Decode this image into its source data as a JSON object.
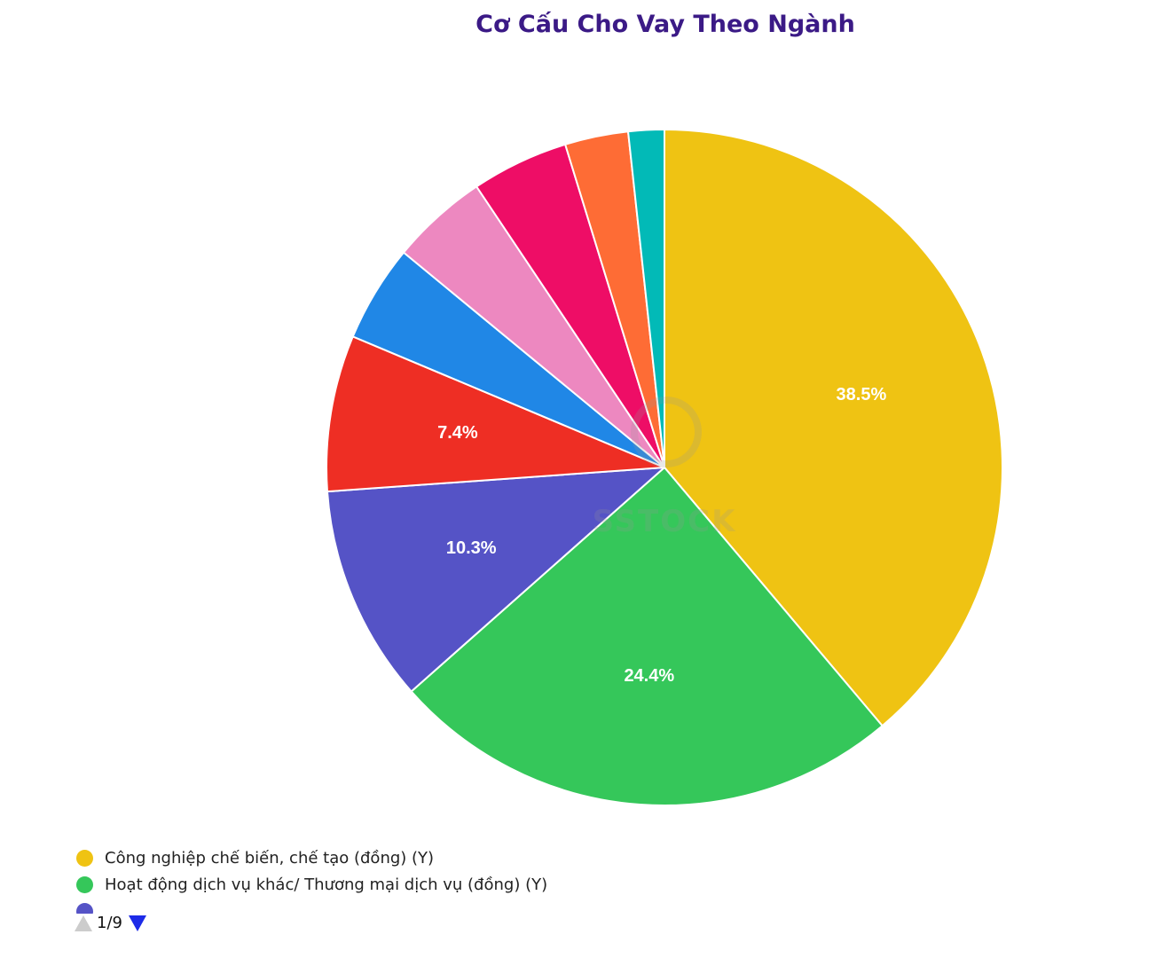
{
  "chart_data": {
    "type": "pie",
    "title": "Cơ Cấu Cho Vay Theo Ngành",
    "slices": [
      {
        "label": "Công nghiệp chế biến, chế tạo (đồng) (Y)",
        "value": 38.5,
        "display": "38.5%",
        "color": "#efc313"
      },
      {
        "label": "Hoạt động dịch vụ khác/ Thương mại dịch vụ (đồng) (Y)",
        "value": 24.4,
        "display": "24.4%",
        "color": "#35c75a"
      },
      {
        "label": "",
        "value": 10.3,
        "display": "10.3%",
        "color": "#5553c6"
      },
      {
        "label": "",
        "value": 7.4,
        "display": "7.4%",
        "color": "#ee2e24"
      },
      {
        "label": "",
        "value": 4.6,
        "display": "",
        "color": "#2087e6"
      },
      {
        "label": "",
        "value": 4.6,
        "display": "",
        "color": "#ed88c0"
      },
      {
        "label": "",
        "value": 4.6,
        "display": "",
        "color": "#ee0d66"
      },
      {
        "label": "",
        "value": 3.0,
        "display": "",
        "color": "#fe6c35"
      },
      {
        "label": "",
        "value": 1.7,
        "display": "",
        "color": "#02bab7"
      }
    ],
    "legend_position": "bottom-left"
  },
  "legend": {
    "pager_text": "1/9"
  },
  "watermark_text": "SSTOCK"
}
